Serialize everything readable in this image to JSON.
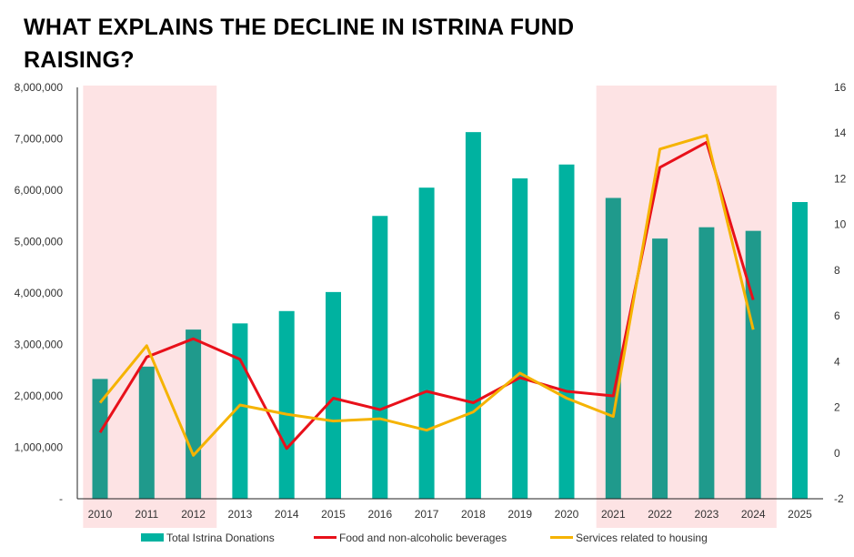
{
  "title": "WHAT EXPLAINS THE DECLINE IN ISTRINA FUND RAISING?",
  "chart_data": {
    "type": "bar",
    "title": "WHAT EXPLAINS THE DECLINE IN ISTRINA FUND RAISING?",
    "categories": [
      "2010",
      "2011",
      "2012",
      "2013",
      "2014",
      "2015",
      "2016",
      "2017",
      "2018",
      "2019",
      "2020",
      "2021",
      "2022",
      "2023",
      "2024",
      "2025"
    ],
    "series": [
      {
        "name": "Total Istrina Donations",
        "type": "bar",
        "axis": "left",
        "color": "#00b2a0",
        "shaded_color": "#1f9a8c",
        "values": [
          2330000,
          2570000,
          3290000,
          3410000,
          3650000,
          4020000,
          5500000,
          6050000,
          7130000,
          6230000,
          6500000,
          5850000,
          5060000,
          5280000,
          5210000,
          5770000
        ]
      },
      {
        "name": "Food and non-alcoholic beverages",
        "type": "line",
        "axis": "right",
        "color": "#e8101a",
        "values": [
          0.9,
          4.2,
          5.0,
          4.1,
          0.2,
          2.4,
          1.9,
          2.7,
          2.2,
          3.3,
          2.7,
          2.5,
          12.5,
          13.6,
          6.7,
          null
        ]
      },
      {
        "name": "Services related to housing",
        "type": "line",
        "axis": "right",
        "color": "#f5b301",
        "values": [
          2.2,
          4.7,
          -0.1,
          2.1,
          1.7,
          1.4,
          1.5,
          1.0,
          1.8,
          3.5,
          2.4,
          1.6,
          13.3,
          13.9,
          5.4,
          null
        ]
      }
    ],
    "y_left": {
      "min": 0,
      "max": 8000000,
      "ticks": [
        "-",
        "1,000,000",
        "2,000,000",
        "3,000,000",
        "4,000,000",
        "5,000,000",
        "6,000,000",
        "7,000,000",
        "8,000,000"
      ]
    },
    "y_right": {
      "min": -2,
      "max": 16,
      "ticks": [
        "-2",
        "0",
        "2",
        "4",
        "6",
        "8",
        "10",
        "12",
        "14",
        "16"
      ]
    },
    "highlight_periods": [
      [
        "2010",
        "2012"
      ],
      [
        "2021",
        "2024"
      ]
    ],
    "highlight_color": "#fde3e4",
    "grid": false,
    "legend_position": "bottom"
  }
}
